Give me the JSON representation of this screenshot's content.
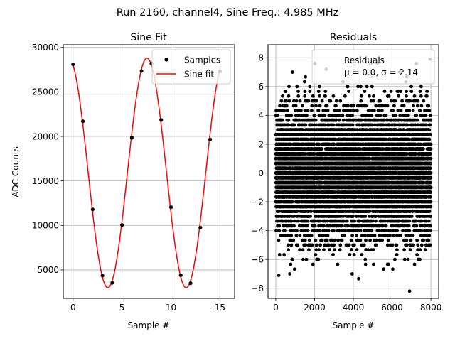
{
  "suptitle": "Run 2160, channel4, Sine Freq.: 4.985 MHz",
  "chart_data": [
    {
      "type": "scatter",
      "title": "Sine Fit",
      "xlabel": "Sample #",
      "ylabel": "ADC Counts",
      "xlim": [
        -1.0,
        16.5
      ],
      "ylim": [
        1800,
        30300
      ],
      "xticks": [
        0,
        5,
        10,
        15
      ],
      "yticks": [
        5000,
        10000,
        15000,
        20000,
        25000,
        30000
      ],
      "grid": true,
      "legend_position": "top-right",
      "series": [
        {
          "name": "Samples",
          "kind": "points",
          "color": "#000000",
          "x": [
            0,
            1,
            2,
            3,
            4,
            5,
            6,
            7,
            8,
            9,
            10,
            11,
            12,
            13,
            14,
            15
          ],
          "y": [
            28100,
            21700,
            11800,
            4350,
            3550,
            10050,
            19850,
            27350,
            28200,
            21850,
            12050,
            4400,
            3500,
            9750,
            19650,
            27300
          ]
        },
        {
          "name": "Sine fit",
          "kind": "line",
          "color": "#ff0000",
          "model": {
            "mean": 15900,
            "amplitude": 12900,
            "period": 8.0,
            "peak_x": 7.55
          }
        }
      ]
    },
    {
      "type": "scatter",
      "title": "Residuals",
      "xlabel": "Sample #",
      "xlim": [
        -400,
        8400
      ],
      "ylim": [
        -8.7,
        8.9
      ],
      "xticks": [
        0,
        2000,
        4000,
        6000,
        8000
      ],
      "yticks": [
        -8,
        -6,
        -4,
        -2,
        0,
        2,
        4,
        6,
        8
      ],
      "grid": true,
      "legend_position": "top-right",
      "series": [
        {
          "name": "Residuals",
          "legend_line2": "μ = 0.0, σ = 2.14",
          "color": "#000000",
          "n_points": 8000,
          "x_range": [
            0,
            8000
          ],
          "mean": 0.0,
          "sigma": 2.14,
          "notable_points": [
            [
              6900,
              -8.2
            ],
            [
              7950,
              7.9
            ],
            [
              2600,
              7.2
            ],
            [
              150,
              -7.1
            ]
          ]
        }
      ]
    }
  ]
}
